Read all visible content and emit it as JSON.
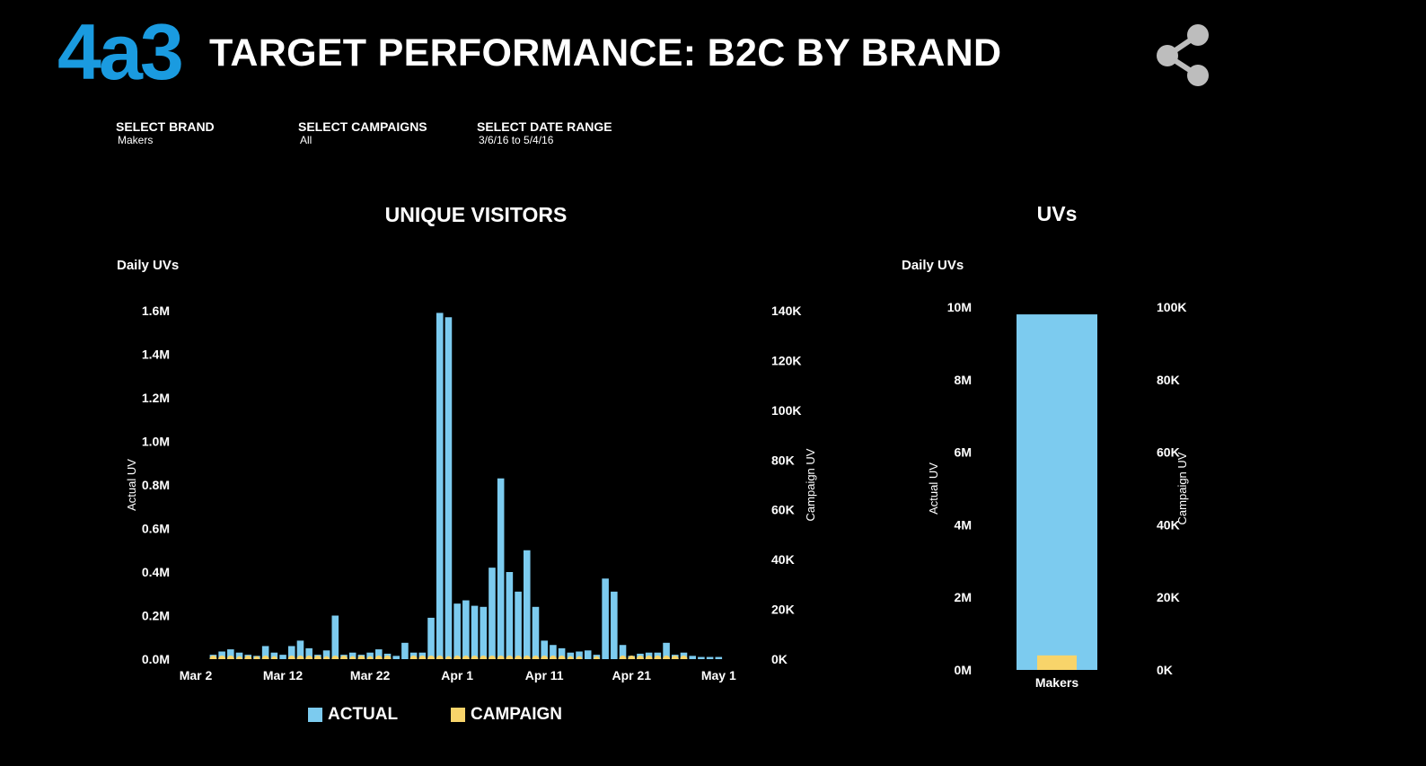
{
  "header": {
    "logo": "4a3",
    "title": "TARGET PERFORMANCE: B2C BY BRAND",
    "share_icon": "share-icon"
  },
  "filters": [
    {
      "label": "SELECT BRAND",
      "value": "Makers"
    },
    {
      "label": "SELECT CAMPAIGNS",
      "value": "All"
    },
    {
      "label": "SELECT DATE RANGE",
      "value": "3/6/16 to 5/4/16"
    }
  ],
  "colors": {
    "actual": "#7ccbef",
    "campaign": "#f8d46a",
    "background": "#000000",
    "logo": "#1a9be0"
  },
  "legend": {
    "actual": "ACTUAL",
    "campaign": "CAMPAIGN"
  },
  "chart_data": [
    {
      "type": "bar",
      "title": "UNIQUE VISITORS",
      "subtitle": "Daily UVs",
      "ylabel": "Actual UV",
      "y2label": "Campaign UV",
      "ylim": [
        0,
        1600000
      ],
      "y2lim": [
        0,
        140000
      ],
      "x_range": [
        "2016-03-02",
        "2016-05-02"
      ],
      "x_ticks": [
        {
          "date": "2016-03-02",
          "label": "Mar 2"
        },
        {
          "date": "2016-03-12",
          "label": "Mar 12"
        },
        {
          "date": "2016-03-22",
          "label": "Mar 22"
        },
        {
          "date": "2016-04-01",
          "label": "Apr 1"
        },
        {
          "date": "2016-04-11",
          "label": "Apr 11"
        },
        {
          "date": "2016-04-21",
          "label": "Apr 21"
        },
        {
          "date": "2016-05-01",
          "label": "May 1"
        }
      ],
      "y_ticks": [
        {
          "value": 0,
          "label": "0.0M"
        },
        {
          "value": 200000,
          "label": "0.2M"
        },
        {
          "value": 400000,
          "label": "0.4M"
        },
        {
          "value": 600000,
          "label": "0.6M"
        },
        {
          "value": 800000,
          "label": "0.8M"
        },
        {
          "value": 1000000,
          "label": "1.0M"
        },
        {
          "value": 1200000,
          "label": "1.2M"
        },
        {
          "value": 1400000,
          "label": "1.4M"
        },
        {
          "value": 1600000,
          "label": "1.6M"
        }
      ],
      "y2_ticks": [
        {
          "value": 0,
          "label": "0K"
        },
        {
          "value": 20000,
          "label": "20K"
        },
        {
          "value": 40000,
          "label": "40K"
        },
        {
          "value": 60000,
          "label": "60K"
        },
        {
          "value": 80000,
          "label": "80K"
        },
        {
          "value": 100000,
          "label": "100K"
        },
        {
          "value": 120000,
          "label": "120K"
        },
        {
          "value": 140000,
          "label": "140K"
        }
      ],
      "series": [
        {
          "name": "ACTUAL",
          "dates": [
            "2016-03-04",
            "2016-03-05",
            "2016-03-06",
            "2016-03-07",
            "2016-03-08",
            "2016-03-09",
            "2016-03-10",
            "2016-03-11",
            "2016-03-12",
            "2016-03-13",
            "2016-03-14",
            "2016-03-15",
            "2016-03-16",
            "2016-03-17",
            "2016-03-18",
            "2016-03-19",
            "2016-03-20",
            "2016-03-21",
            "2016-03-22",
            "2016-03-23",
            "2016-03-24",
            "2016-03-25",
            "2016-03-26",
            "2016-03-27",
            "2016-03-28",
            "2016-03-29",
            "2016-03-30",
            "2016-03-31",
            "2016-04-01",
            "2016-04-02",
            "2016-04-03",
            "2016-04-04",
            "2016-04-05",
            "2016-04-06",
            "2016-04-07",
            "2016-04-08",
            "2016-04-09",
            "2016-04-10",
            "2016-04-11",
            "2016-04-12",
            "2016-04-13",
            "2016-04-14",
            "2016-04-15",
            "2016-04-16",
            "2016-04-17",
            "2016-04-18",
            "2016-04-19",
            "2016-04-20",
            "2016-04-21",
            "2016-04-22",
            "2016-04-23",
            "2016-04-24",
            "2016-04-25",
            "2016-04-26",
            "2016-04-27",
            "2016-04-28",
            "2016-04-29",
            "2016-04-30",
            "2016-05-01"
          ],
          "values": [
            20000,
            35000,
            45000,
            30000,
            20000,
            15000,
            60000,
            30000,
            20000,
            60000,
            85000,
            50000,
            20000,
            40000,
            200000,
            20000,
            30000,
            20000,
            30000,
            45000,
            25000,
            15000,
            75000,
            30000,
            30000,
            190000,
            1590000,
            1570000,
            255000,
            270000,
            245000,
            240000,
            420000,
            830000,
            400000,
            310000,
            500000,
            240000,
            85000,
            65000,
            50000,
            30000,
            35000,
            40000,
            20000,
            370000,
            310000,
            65000,
            15000,
            25000,
            30000,
            30000,
            75000,
            20000,
            30000,
            15000,
            10000,
            10000,
            10000
          ]
        },
        {
          "name": "CAMPAIGN",
          "dates": [
            "2016-03-04",
            "2016-03-05",
            "2016-03-06",
            "2016-03-07",
            "2016-03-08",
            "2016-03-09",
            "2016-03-10",
            "2016-03-11",
            "2016-03-13",
            "2016-03-14",
            "2016-03-15",
            "2016-03-16",
            "2016-03-17",
            "2016-03-18",
            "2016-03-19",
            "2016-03-20",
            "2016-03-21",
            "2016-03-22",
            "2016-03-23",
            "2016-03-24",
            "2016-03-27",
            "2016-03-28",
            "2016-03-29",
            "2016-03-30",
            "2016-03-31",
            "2016-04-01",
            "2016-04-02",
            "2016-04-03",
            "2016-04-04",
            "2016-04-05",
            "2016-04-06",
            "2016-04-07",
            "2016-04-08",
            "2016-04-09",
            "2016-04-10",
            "2016-04-11",
            "2016-04-12",
            "2016-04-13",
            "2016-04-14",
            "2016-04-15",
            "2016-04-17",
            "2016-04-20",
            "2016-04-21",
            "2016-04-22",
            "2016-04-23",
            "2016-04-24",
            "2016-04-25",
            "2016-04-26",
            "2016-04-27"
          ],
          "values": [
            1500,
            1800,
            1500,
            1200,
            1500,
            1200,
            1500,
            1200,
            1500,
            1500,
            1800,
            1500,
            1200,
            1500,
            1500,
            1200,
            1500,
            1200,
            1500,
            1500,
            1500,
            1500,
            1500,
            1500,
            1200,
            1500,
            1500,
            1500,
            1500,
            1500,
            1500,
            1500,
            1500,
            1500,
            1500,
            1500,
            1500,
            1500,
            1200,
            1200,
            1200,
            1500,
            1800,
            1500,
            1500,
            1500,
            1800,
            1800,
            1500
          ]
        }
      ]
    },
    {
      "type": "bar",
      "title": "UVs",
      "subtitle": "Daily UVs",
      "ylabel": "Actual UV",
      "y2label": "Campaign UV",
      "ylim": [
        0,
        10000000
      ],
      "y2lim": [
        0,
        100000
      ],
      "categories": [
        "Makers"
      ],
      "y_ticks": [
        {
          "value": 0,
          "label": "0M"
        },
        {
          "value": 2000000,
          "label": "2M"
        },
        {
          "value": 4000000,
          "label": "4M"
        },
        {
          "value": 6000000,
          "label": "6M"
        },
        {
          "value": 8000000,
          "label": "8M"
        },
        {
          "value": 10000000,
          "label": "10M"
        }
      ],
      "y2_ticks": [
        {
          "value": 0,
          "label": "0K"
        },
        {
          "value": 20000,
          "label": "20K"
        },
        {
          "value": 40000,
          "label": "40K"
        },
        {
          "value": 60000,
          "label": "60K"
        },
        {
          "value": 80000,
          "label": "80K"
        },
        {
          "value": 100000,
          "label": "100K"
        }
      ],
      "series": [
        {
          "name": "ACTUAL",
          "values": [
            9800000
          ]
        },
        {
          "name": "CAMPAIGN",
          "values": [
            4000
          ]
        }
      ]
    }
  ]
}
